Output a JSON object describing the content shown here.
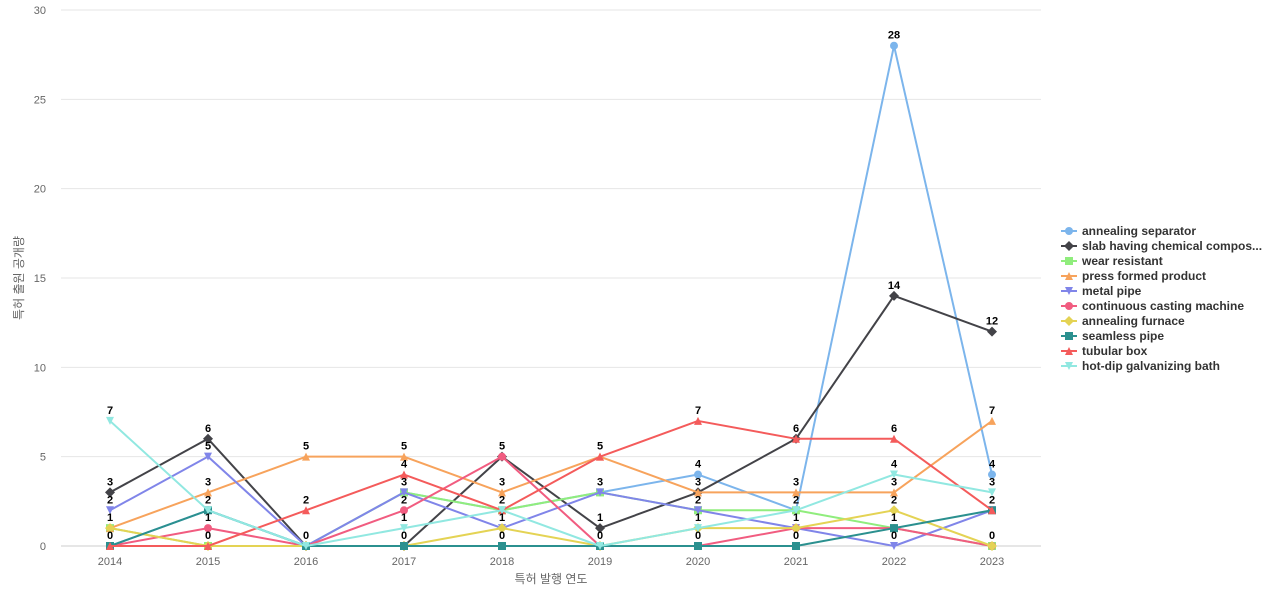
{
  "chart_data": {
    "type": "line",
    "xlabel": "특허 발행 연도",
    "ylabel": "특허 출원 공개량",
    "ylim": [
      0,
      30
    ],
    "yticks": [
      0,
      5,
      10,
      15,
      20,
      25,
      30
    ],
    "categories": [
      "2014",
      "2015",
      "2016",
      "2017",
      "2018",
      "2019",
      "2020",
      "2021",
      "2022",
      "2023"
    ],
    "grid": true,
    "legend_position": "right",
    "series": [
      {
        "name": "annealing separator",
        "color": "#7cb5ec",
        "marker": "circle",
        "values": [
          0,
          2,
          0,
          3,
          2,
          3,
          4,
          2,
          28,
          4
        ]
      },
      {
        "name": "slab having chemical compos...",
        "color": "#434348",
        "marker": "diamond",
        "values": [
          3,
          6,
          0,
          0,
          5,
          1,
          3,
          6,
          14,
          12
        ]
      },
      {
        "name": "wear resistant",
        "color": "#90ed7d",
        "marker": "square",
        "values": [
          1,
          0,
          0,
          3,
          2,
          3,
          2,
          2,
          1,
          0
        ]
      },
      {
        "name": "press formed product",
        "color": "#f7a35c",
        "marker": "triangle",
        "values": [
          1,
          3,
          5,
          5,
          3,
          5,
          3,
          3,
          3,
          7
        ]
      },
      {
        "name": "metal pipe",
        "color": "#8085e9",
        "marker": "triangle-down",
        "values": [
          2,
          5,
          0,
          3,
          1,
          3,
          2,
          1,
          0,
          2
        ]
      },
      {
        "name": "continuous casting machine",
        "color": "#f15c80",
        "marker": "circle",
        "values": [
          0,
          1,
          0,
          2,
          5,
          0,
          0,
          1,
          1,
          0
        ]
      },
      {
        "name": "annealing furnace",
        "color": "#e4d354",
        "marker": "diamond",
        "values": [
          1,
          0,
          0,
          0,
          1,
          0,
          1,
          1,
          2,
          0
        ]
      },
      {
        "name": "seamless pipe",
        "color": "#2b908f",
        "marker": "square",
        "values": [
          0,
          2,
          0,
          0,
          0,
          0,
          0,
          0,
          1,
          2
        ]
      },
      {
        "name": "tubular box",
        "color": "#f45b5b",
        "marker": "triangle",
        "values": [
          0,
          0,
          2,
          4,
          2,
          5,
          7,
          6,
          6,
          2
        ]
      },
      {
        "name": "hot-dip galvanizing bath",
        "color": "#91e8e1",
        "marker": "triangle-down",
        "values": [
          7,
          2,
          0,
          1,
          2,
          0,
          1,
          2,
          4,
          3
        ]
      }
    ],
    "data_labels": [
      {
        "x": "2014",
        "labels": [
          "7",
          "3",
          "2",
          "1",
          "0"
        ]
      },
      {
        "x": "2015",
        "labels": [
          "6",
          "5",
          "3",
          "2",
          "1",
          "0"
        ]
      },
      {
        "x": "2016",
        "labels": [
          "5",
          "2",
          "0"
        ]
      },
      {
        "x": "2017",
        "labels": [
          "5",
          "4",
          "3",
          "2",
          "1",
          "0"
        ]
      },
      {
        "x": "2018",
        "labels": [
          "5",
          "3",
          "2",
          "1",
          "0"
        ]
      },
      {
        "x": "2019",
        "labels": [
          "5",
          "3",
          "1",
          "0"
        ]
      },
      {
        "x": "2020",
        "labels": [
          "7",
          "4",
          "3",
          "2",
          "1",
          "0"
        ]
      },
      {
        "x": "2021",
        "labels": [
          "6",
          "3",
          "2",
          "1",
          "0"
        ]
      },
      {
        "x": "2022",
        "labels": [
          "28",
          "14",
          "6",
          "4",
          "3",
          "2",
          "1",
          "0"
        ]
      },
      {
        "x": "2023",
        "labels": [
          "12",
          "7",
          "4",
          "3",
          "2",
          "0"
        ]
      }
    ]
  }
}
